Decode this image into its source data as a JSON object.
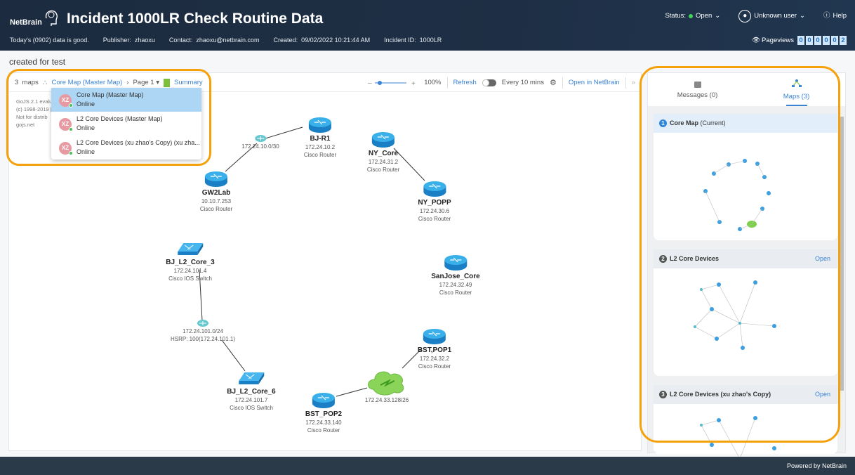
{
  "header": {
    "logo": "NetBrain",
    "title": "Incident 1000LR Check Routine Data",
    "status_label": "Status:",
    "status_value": "Open",
    "status_color": "#3fd35b",
    "user": "Unknown user",
    "help": "Help",
    "info": [
      "Today's (0902) data is good.",
      "Publisher:  zhaoxu",
      "Contact:  zhaoxu@netbrain.com",
      "Created:  09/02/2022 10:21:44 AM",
      "Incident ID:  1000LR"
    ],
    "pageviews_label": "Pageviews",
    "pageviews_digits": [
      "0",
      "0",
      "0",
      "0",
      "0",
      "2"
    ]
  },
  "description": "created for test",
  "toolbar": {
    "maps_count": "3  maps",
    "current_map": "Core Map (Master Map)",
    "page": "Page 1",
    "summary": "Summary",
    "zoom": "100%",
    "refresh": "Refresh",
    "interval": "Every 10 mins",
    "open_in": "Open in NetBrain",
    "collapse": "»"
  },
  "map_dropdown": [
    {
      "avatar": "XZ",
      "name": "Core Map (Master Map)",
      "status": "Online",
      "selected": true
    },
    {
      "avatar": "XZ",
      "name": "L2 Core Devices (Master Map)",
      "status": "Online"
    },
    {
      "avatar": "XZ",
      "name": "L2 Core Devices (xu zhao's Copy) (xu zha...",
      "status": "Online"
    }
  ],
  "gojs_watermark": [
    "GoJS 2.1 evalu",
    "(c) 1998-2019 |",
    "Not for distrib",
    "gojs.net"
  ],
  "map": {
    "nodes": [
      {
        "name": "BJ-R1",
        "ip": "172.24.10.2",
        "type": "Cisco Router",
        "icon": "router"
      },
      {
        "name": "",
        "ip": "172.24.10.0/30",
        "type": "",
        "icon": "subnet"
      },
      {
        "name": "GW2Lab",
        "ip": "10.10.7.253",
        "type": "Cisco Router",
        "icon": "router"
      },
      {
        "name": "NY_Core",
        "ip": "172.24.31.2",
        "type": "Cisco Router",
        "icon": "router"
      },
      {
        "name": "NY_POPP",
        "ip": "172.24.30.6",
        "type": "Cisco Router",
        "icon": "router"
      },
      {
        "name": "BJ_L2_Core_3",
        "ip": "172.24.101.4",
        "type": "Cisco IOS Switch",
        "icon": "switch"
      },
      {
        "name": "SanJose_Core",
        "ip": "172.24.32.49",
        "type": "Cisco Router",
        "icon": "router"
      },
      {
        "name": "",
        "ip": "172.24.101.0/24",
        "type": "HSRP: 100(172.24.101.1)",
        "icon": "subnet"
      },
      {
        "name": "BJ_L2_Core_6",
        "ip": "172.24.101.7",
        "type": "Cisco IOS Switch",
        "icon": "switch"
      },
      {
        "name": "BST,POP1",
        "ip": "172.24.32.2",
        "type": "Cisco Router",
        "icon": "router"
      },
      {
        "name": "",
        "ip": "172.24.33.128/26",
        "type": "",
        "icon": "cloud"
      },
      {
        "name": "BST_POP2",
        "ip": "172.24.33.140",
        "type": "Cisco Router",
        "icon": "router"
      }
    ]
  },
  "right_panel": {
    "tabs": [
      {
        "label": "Messages (0)",
        "icon": "message-icon"
      },
      {
        "label": "Maps (3)",
        "icon": "map-tree-icon",
        "active": true
      }
    ],
    "cards": [
      {
        "num": "1",
        "title": "Core Map",
        "suffix": "(Current)"
      },
      {
        "num": "2",
        "title": "L2 Core Devices",
        "open": "Open"
      },
      {
        "num": "3",
        "title": "L2 Core Devices (xu zhao's Copy)",
        "open": "Open"
      }
    ]
  },
  "footer": "Powered by NetBrain",
  "accent": "#3b83d4",
  "highlight": "#f5a10b"
}
